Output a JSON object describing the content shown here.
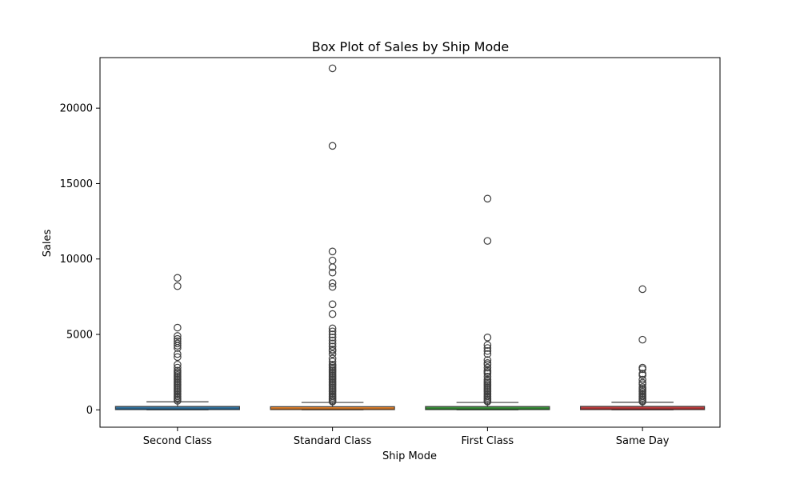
{
  "chart_data": {
    "type": "box",
    "title": "Box Plot of Sales by Ship Mode",
    "xlabel": "Ship Mode",
    "ylabel": "Sales",
    "ylim": [
      -1150,
      23350
    ],
    "yticks": [
      0,
      5000,
      10000,
      15000,
      20000
    ],
    "grid": false,
    "categories": [
      "Second Class",
      "Standard Class",
      "First Class",
      "Same Day"
    ],
    "colors": [
      "#3274a1",
      "#e1812c",
      "#3a923a",
      "#c03d3e"
    ],
    "boxes": [
      {
        "name": "Second Class",
        "whisker_low": 0.5,
        "q1": 17,
        "median": 54,
        "q3": 225,
        "whisker_high": 535,
        "outliers": [
          8750,
          8200,
          5450,
          4900,
          4700,
          4550,
          4400,
          4250,
          4100,
          3700,
          3500,
          3000,
          2800,
          2600,
          2500,
          2400,
          2300,
          2200,
          2100,
          2000,
          1900,
          1800,
          1700,
          1600,
          1500,
          1400,
          1300,
          1200,
          1100,
          1000,
          900,
          800,
          700,
          600
        ]
      },
      {
        "name": "Standard Class",
        "whisker_low": 0.5,
        "q1": 17,
        "median": 54,
        "q3": 210,
        "whisker_high": 490,
        "outliers": [
          22640,
          17500,
          10500,
          9900,
          9450,
          9100,
          8400,
          8150,
          7000,
          6350,
          5400,
          5200,
          5000,
          4800,
          4600,
          4400,
          4200,
          4000,
          3900,
          3700,
          3400,
          3200,
          3000,
          2900,
          2800,
          2700,
          2600,
          2500,
          2400,
          2300,
          2200,
          2100,
          2000,
          1900,
          1800,
          1700,
          1600,
          1500,
          1400,
          1300,
          1200,
          1100,
          1000,
          900,
          800,
          700,
          600,
          550
        ]
      },
      {
        "name": "First Class",
        "whisker_low": 0.5,
        "q1": 17,
        "median": 54,
        "q3": 220,
        "whisker_high": 490,
        "outliers": [
          14000,
          11200,
          4800,
          4300,
          4100,
          3900,
          3700,
          3300,
          3100,
          3000,
          2800,
          2600,
          2500,
          2400,
          2200,
          2000,
          1900,
          1800,
          1700,
          1600,
          1500,
          1400,
          1300,
          1200,
          1100,
          1000,
          900,
          800,
          700,
          600,
          550
        ]
      },
      {
        "name": "Same Day",
        "whisker_low": 0.5,
        "q1": 17,
        "median": 54,
        "q3": 230,
        "whisker_high": 500,
        "outliers": [
          8000,
          4650,
          2800,
          2700,
          2400,
          2300,
          2000,
          1800,
          1700,
          1500,
          1400,
          1300,
          1200,
          1100,
          1000,
          900,
          800,
          700,
          600,
          550
        ]
      }
    ]
  }
}
